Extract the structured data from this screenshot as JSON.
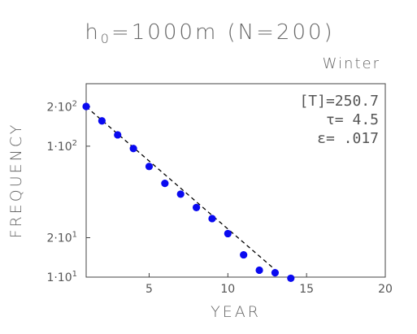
{
  "chart_data": {
    "type": "scatter",
    "title_main": "h",
    "title_sub": "0",
    "title_rest": "=1000m (N=200)",
    "subtitle": "Winter",
    "xlabel": "YEAR",
    "ylabel": "FREQUENCY",
    "xlim": [
      1,
      20
    ],
    "ylim": [
      10,
      300
    ],
    "yscale": "log",
    "x_ticks": [
      {
        "value": 5,
        "label": "5"
      },
      {
        "value": 10,
        "label": "10"
      },
      {
        "value": 15,
        "label": "15"
      },
      {
        "value": 20,
        "label": "20"
      }
    ],
    "y_ticks": [
      {
        "value": 10,
        "mant": "1·10",
        "exp": "1"
      },
      {
        "value": 20,
        "mant": "2·10",
        "exp": "1"
      },
      {
        "value": 100,
        "mant": "1·10",
        "exp": "2"
      },
      {
        "value": 200,
        "mant": "2·10",
        "exp": "2"
      }
    ],
    "annotations": [
      "[T]=250.7",
      "τ=   4.5",
      "ε=  .017"
    ],
    "series": [
      {
        "marker": "circle",
        "color": "#0a0af0",
        "x": [
          1,
          2,
          3,
          4,
          5,
          6,
          7,
          8,
          9,
          10,
          11,
          12,
          13,
          14
        ],
        "y": [
          201,
          156,
          122,
          96,
          70,
          52,
          43,
          34,
          28,
          21.5,
          14.8,
          11.3,
          10.8,
          9.8
        ]
      }
    ],
    "fit_line": {
      "style": "dashed",
      "color": "#000000",
      "x": [
        1,
        13
      ],
      "y": [
        200,
        11.4
      ]
    }
  }
}
